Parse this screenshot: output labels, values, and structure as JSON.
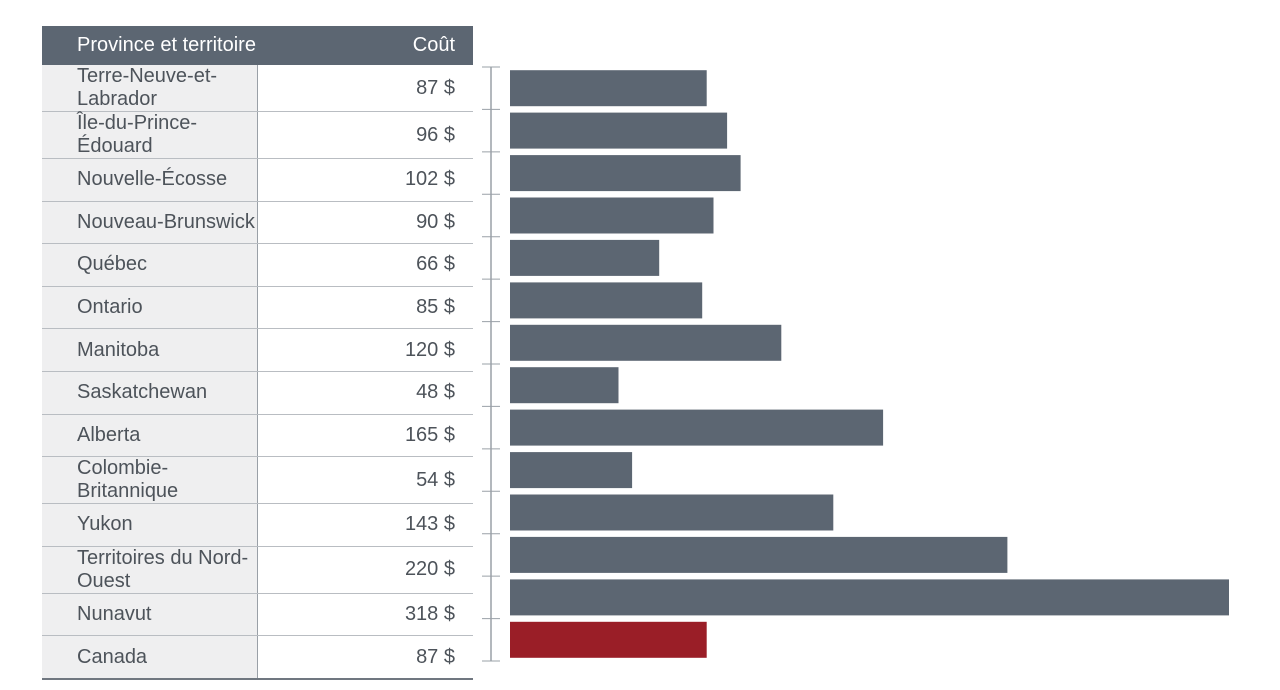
{
  "table": {
    "header_province": "Province et territoire",
    "header_cost": "Coût"
  },
  "chart_data": {
    "type": "bar",
    "orientation": "horizontal",
    "categories": [
      "Terre-Neuve-et-Labrador",
      "Île-du-Prince-Édouard",
      "Nouvelle-Écosse",
      "Nouveau-Brunswick",
      "Québec",
      "Ontario",
      "Manitoba",
      "Saskatchewan",
      "Alberta",
      "Colombie-Britannique",
      "Yukon",
      "Territoires du Nord-Ouest",
      "Nunavut",
      "Canada"
    ],
    "values": [
      87,
      96,
      102,
      90,
      66,
      85,
      120,
      48,
      165,
      54,
      143,
      220,
      318,
      87
    ],
    "labels": [
      "87 $",
      "96 $",
      "102 $",
      "90 $",
      "66 $",
      "85 $",
      "120 $",
      "48 $",
      "165 $",
      "54 $",
      "143 $",
      "220 $",
      "318 $",
      "87 $"
    ],
    "xlim": [
      0,
      318
    ],
    "grid": false,
    "colors": {
      "bar": "#5c6672",
      "highlight": "#9a1e27",
      "axis": "#9aa0a7"
    },
    "highlight_category": "Canada"
  }
}
